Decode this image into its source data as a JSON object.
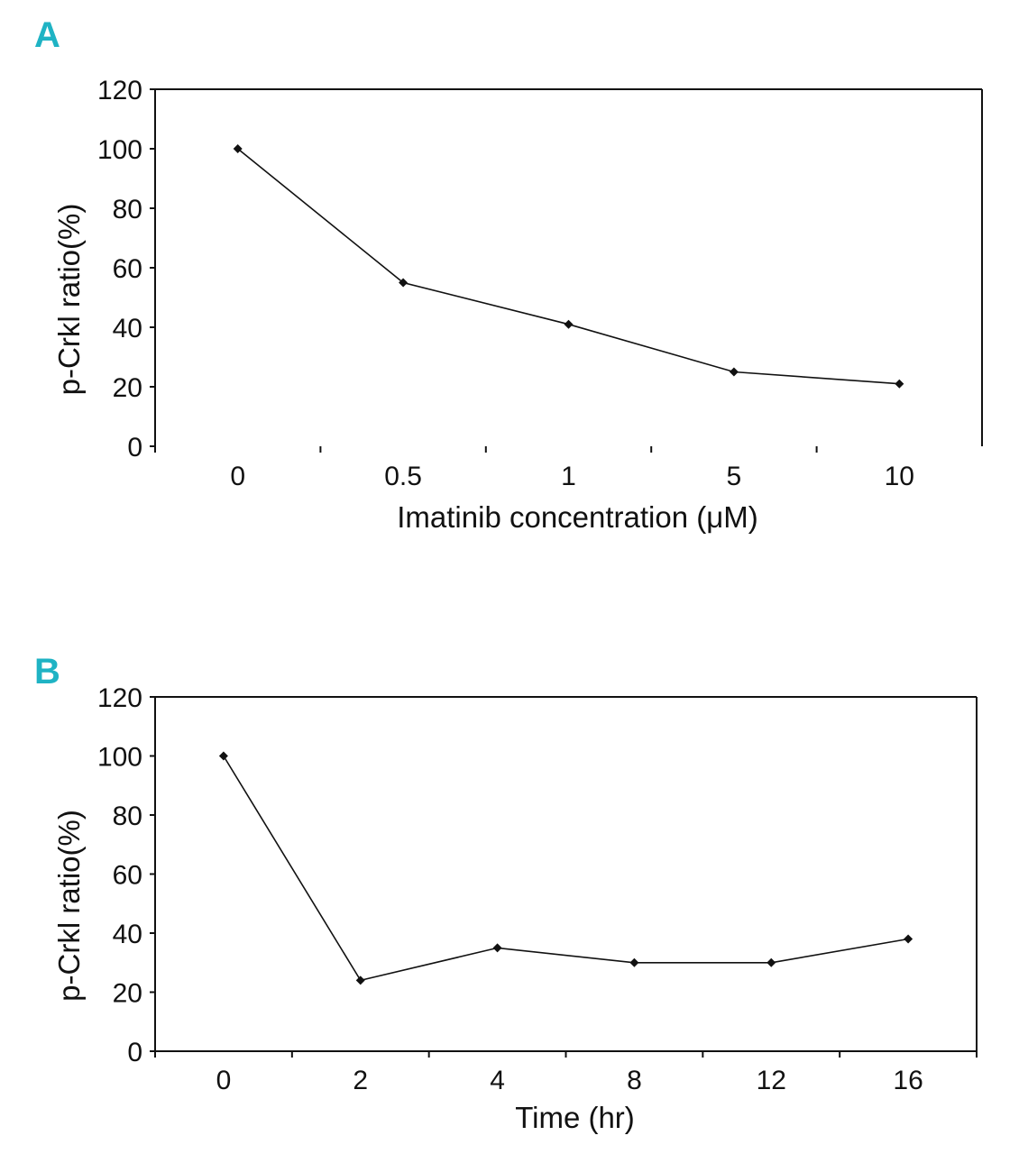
{
  "colors": {
    "panel_letter": "#1fb3c4",
    "line": "#111111",
    "axis": "#111111"
  },
  "chart_data": [
    {
      "panel": "A",
      "type": "line",
      "categories": [
        "0",
        "0.5",
        "1",
        "5",
        "10"
      ],
      "values": [
        100,
        55,
        41,
        25,
        21
      ],
      "xlabel": "Imatinib concentration (μM)",
      "ylabel": "p-Crkl ratio(%)",
      "ylim": [
        0,
        120
      ],
      "yticks": [
        "0",
        "20",
        "40",
        "60",
        "80",
        "100",
        "120"
      ],
      "grid": false,
      "marker": "diamond"
    },
    {
      "panel": "B",
      "type": "line",
      "categories": [
        "0",
        "2",
        "4",
        "8",
        "12",
        "16"
      ],
      "values": [
        100,
        24,
        35,
        30,
        30,
        38
      ],
      "xlabel": "Time (hr)",
      "ylabel": "p-Crkl ratio(%)",
      "ylim": [
        0,
        120
      ],
      "yticks": [
        "0",
        "20",
        "40",
        "60",
        "80",
        "100",
        "120"
      ],
      "grid": false,
      "marker": "diamond"
    }
  ]
}
